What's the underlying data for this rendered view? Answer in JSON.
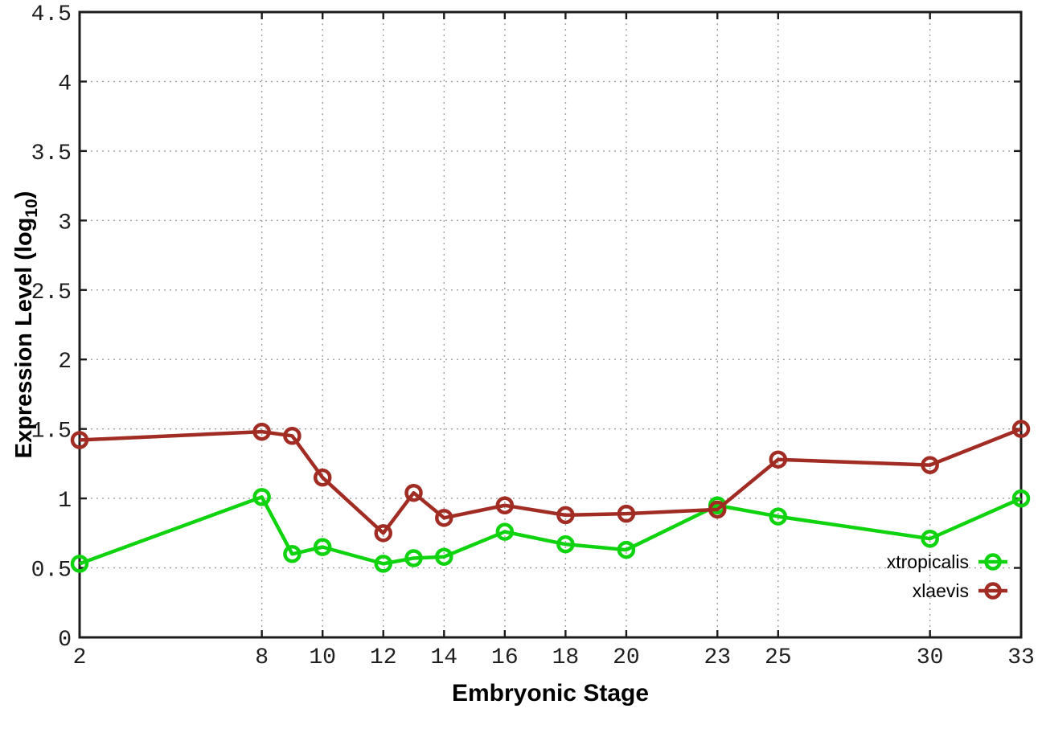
{
  "chart_data": {
    "type": "line",
    "title": "",
    "xlabel": "Embryonic Stage",
    "ylabel": {
      "prefix": "Expression Level (log",
      "subscript": "10",
      "suffix": ")"
    },
    "xlim": [
      2,
      33
    ],
    "ylim": [
      0,
      4.5
    ],
    "xticks": [
      2,
      8,
      10,
      12,
      14,
      16,
      18,
      20,
      23,
      25,
      30,
      33
    ],
    "yticks": [
      0,
      0.5,
      1,
      1.5,
      2,
      2.5,
      3,
      3.5,
      4,
      4.5
    ],
    "grid": true,
    "legend_position": "inside-bottom-right",
    "x": [
      2,
      8,
      9,
      10,
      12,
      13,
      14,
      16,
      18,
      20,
      23,
      25,
      30,
      33
    ],
    "series": [
      {
        "name": "xtropicalis",
        "color": "#10d310",
        "values": [
          0.53,
          1.01,
          0.6,
          0.65,
          0.53,
          0.57,
          0.58,
          0.76,
          0.67,
          0.63,
          0.95,
          0.87,
          0.71,
          1.0
        ]
      },
      {
        "name": "xlaevis",
        "color": "#a02c24",
        "values": [
          1.42,
          1.48,
          1.45,
          1.15,
          0.75,
          1.04,
          0.86,
          0.95,
          0.88,
          0.89,
          0.92,
          1.28,
          1.24,
          1.5
        ]
      }
    ]
  }
}
